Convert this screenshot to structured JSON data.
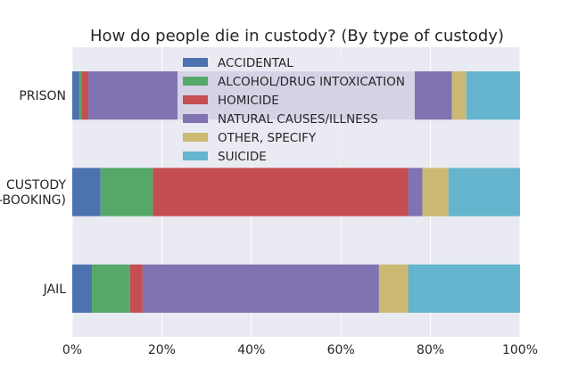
{
  "chart_data": {
    "type": "bar",
    "orientation": "horizontal",
    "stacked": true,
    "title": "How do people die in custody? (By type of custody)",
    "xlabel": "",
    "ylabel": "",
    "xlim": [
      0,
      100
    ],
    "x_ticks": [
      "0%",
      "20%",
      "40%",
      "60%",
      "80%",
      "100%"
    ],
    "grid": true,
    "legend_position": "top-center",
    "categories": [
      "PRISON",
      "CUSTODY\n(PRE-BOOKING)",
      "JAIL"
    ],
    "series": [
      {
        "name": "ACCIDENTAL",
        "color": "#4c72b0",
        "values": [
          1.5,
          6.3,
          4.4
        ]
      },
      {
        "name": "ALCOHOL/DRUG INTOXICATION",
        "color": "#55a868",
        "values": [
          0.6,
          11.7,
          8.5
        ]
      },
      {
        "name": "HOMICIDE",
        "color": "#c44e52",
        "values": [
          1.5,
          57.0,
          2.8
        ]
      },
      {
        "name": "NATURAL CAUSES/ILLNESS",
        "color": "#8172b2",
        "values": [
          81.2,
          3.2,
          52.8
        ]
      },
      {
        "name": "OTHER, SPECIFY",
        "color": "#ccb974",
        "values": [
          3.2,
          5.8,
          6.5
        ]
      },
      {
        "name": "SUICIDE",
        "color": "#64b5cd",
        "values": [
          12.0,
          16.0,
          25.0
        ]
      }
    ]
  }
}
